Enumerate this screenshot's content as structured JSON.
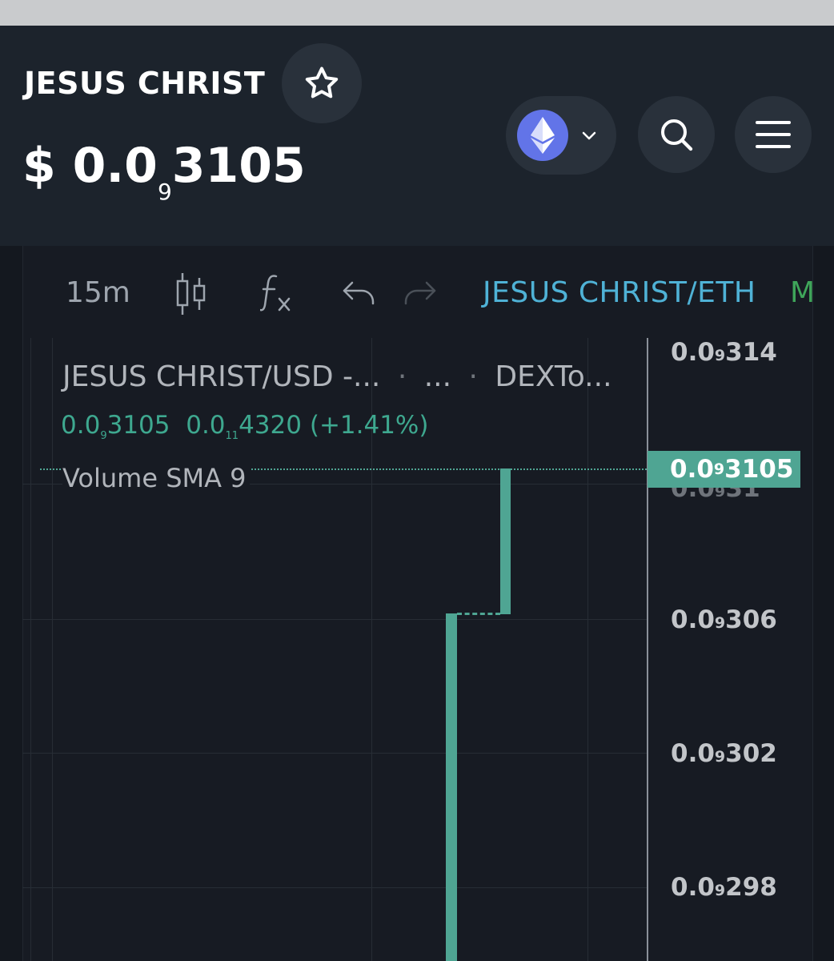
{
  "header": {
    "token_name": "JESUS CHRIST",
    "price_prefix": "$ 0.0",
    "price_zero_count": "9",
    "price_digits": "3105"
  },
  "icons": {
    "favorite": "star-icon",
    "chain": "ethereum-icon",
    "chain_dropdown": "chevron-down-icon",
    "search": "search-icon",
    "menu": "hamburger-menu-icon",
    "chart_type": "candlestick-icon",
    "indicators": "fx-icon",
    "undo": "undo-icon",
    "redo": "redo-icon"
  },
  "toolbar": {
    "interval": "15m",
    "pair": "JESUS CHRIST/ETH",
    "next_tab": "M"
  },
  "legend": {
    "title_pair": "JESUS CHRIST/USD -...",
    "title_dots": "...",
    "title_source": "DEXTo...",
    "value_price_prefix": "0.0",
    "value_price_sub": "9",
    "value_price_digits": "3105",
    "value_change_prefix": "0.0",
    "value_change_sub": "11",
    "value_change_digits": "4320",
    "value_change_pct": "(+1.41%)",
    "volume_indicator": "Volume SMA 9"
  },
  "axis": {
    "labels": [
      {
        "prefix": "0.0",
        "sub": "9",
        "digits": "314"
      },
      {
        "prefix": "0.0",
        "sub": "9",
        "digits": "306"
      },
      {
        "prefix": "0.0",
        "sub": "9",
        "digits": "302"
      },
      {
        "prefix": "0.0",
        "sub": "9",
        "digits": "298"
      }
    ],
    "hidden_label": "0.0₉31",
    "last_price": {
      "prefix": "0.0",
      "sub": "9",
      "digits": "3105"
    }
  },
  "colors": {
    "accent_green": "#4fa593",
    "pair_blue": "#4fb2d6",
    "eth_purple": "#6274e8",
    "header_bg": "#1c232c",
    "chart_bg": "#171b23"
  }
}
